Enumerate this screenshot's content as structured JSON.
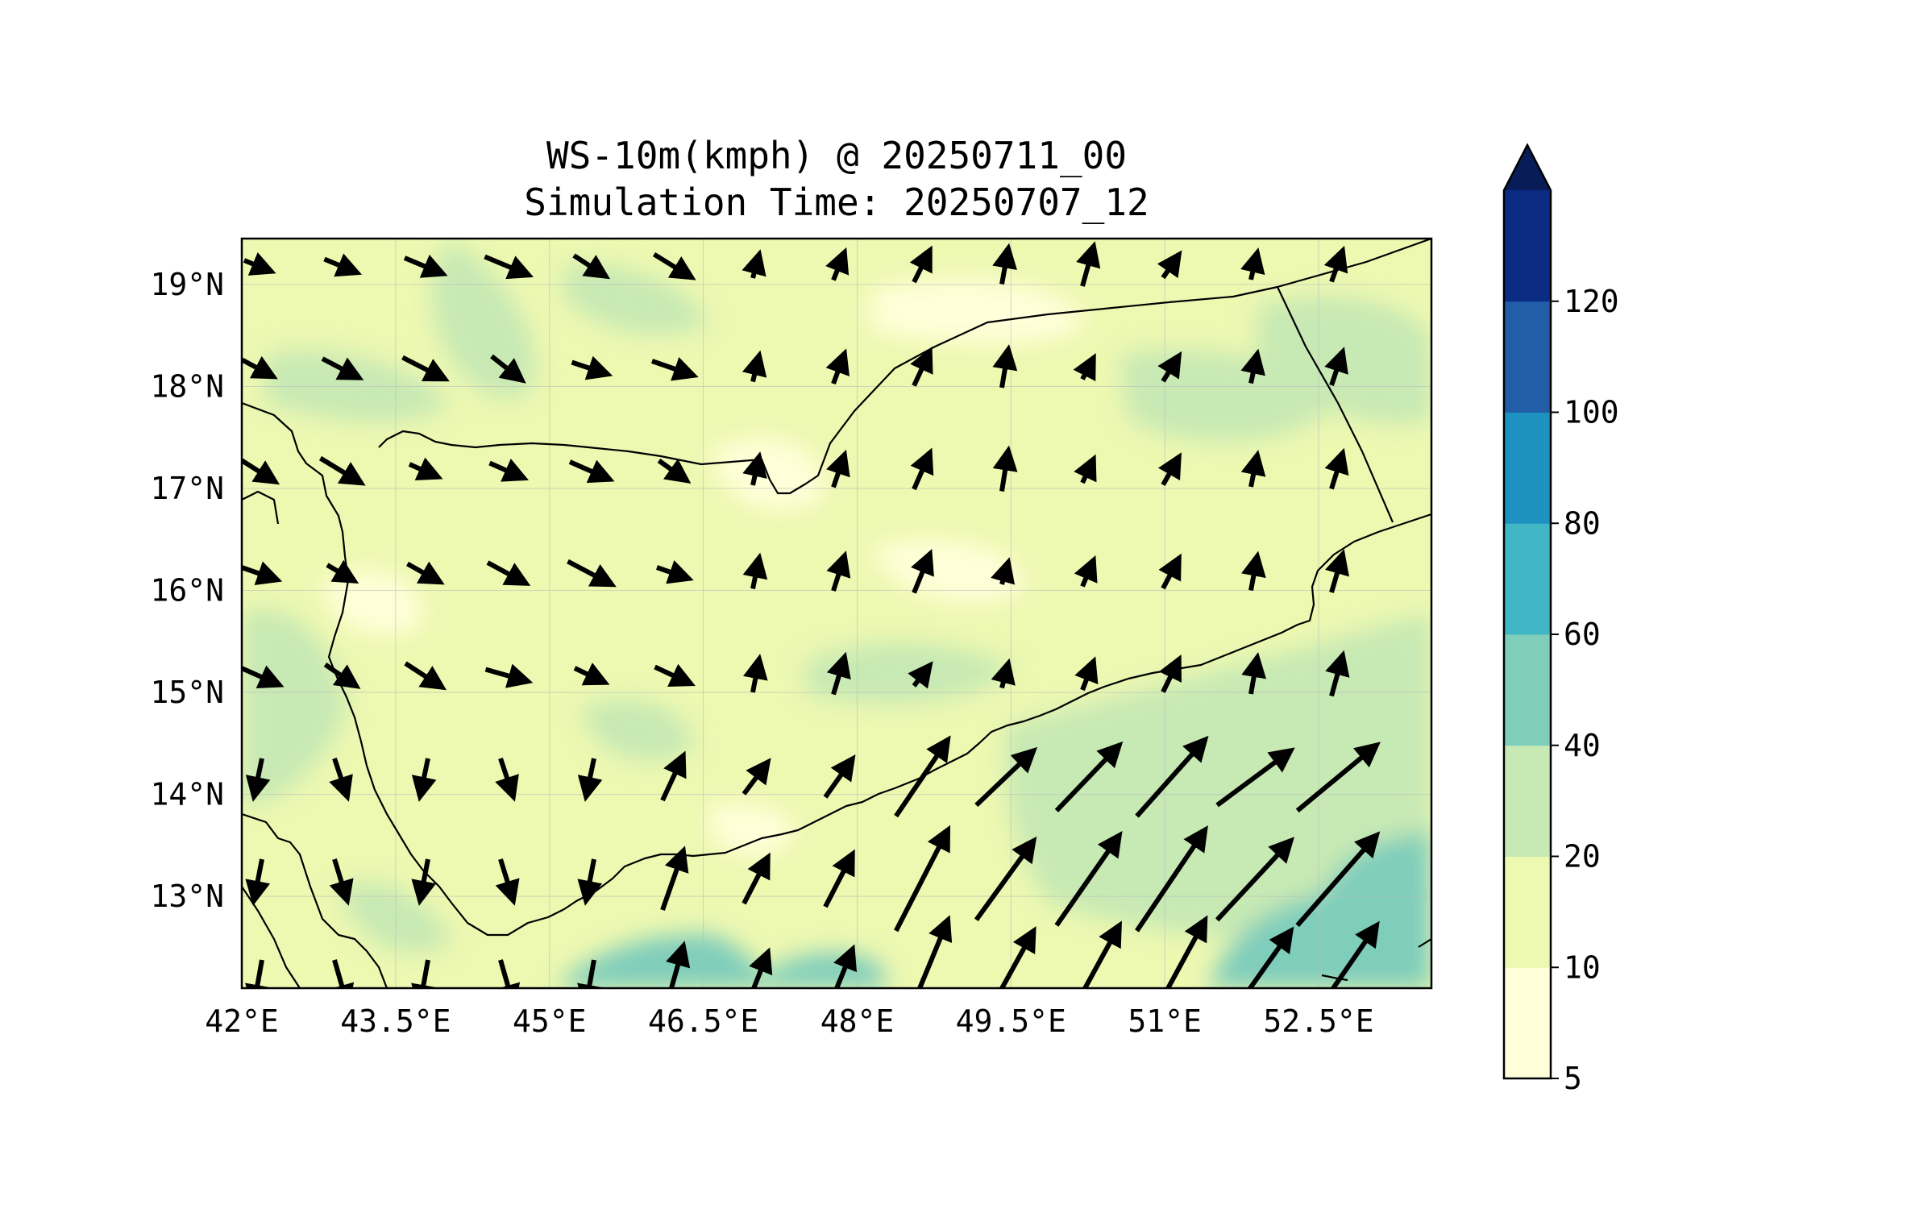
{
  "title": {
    "line1": "WS-10m(kmph) @ 20250711_00",
    "line2": "Simulation Time: 20250707_12"
  },
  "map": {
    "extent": {
      "lon_min": 42.0,
      "lon_max": 53.6,
      "lat_min": 12.1,
      "lat_max": 19.45
    },
    "x_ticks": [
      "42°E",
      "43.5°E",
      "45°E",
      "46.5°E",
      "48°E",
      "49.5°E",
      "51°E",
      "52.5°E"
    ],
    "x_tick_values": [
      42,
      43.5,
      45,
      46.5,
      48,
      49.5,
      51,
      52.5
    ],
    "y_ticks": [
      "19°N",
      "18°N",
      "17°N",
      "16°N",
      "15°N",
      "14°N",
      "13°N"
    ],
    "y_tick_values": [
      19,
      18,
      17,
      16,
      15,
      14,
      13
    ],
    "gridlines": true,
    "field": "10 m wind speed (filled contours) with wind vectors"
  },
  "colorbar": {
    "tick_labels": [
      "5",
      "10",
      "20",
      "40",
      "60",
      "80",
      "100",
      "120"
    ],
    "levels": [
      5,
      10,
      20,
      40,
      60,
      80,
      100,
      120
    ],
    "colors": [
      "#ffffd9",
      "#edf8b1",
      "#c7e9b4",
      "#7fcdbb",
      "#41b6c4",
      "#1d91c0",
      "#225ea8",
      "#0c2c84"
    ],
    "extend": "max",
    "extend_color": "#081d58"
  }
}
